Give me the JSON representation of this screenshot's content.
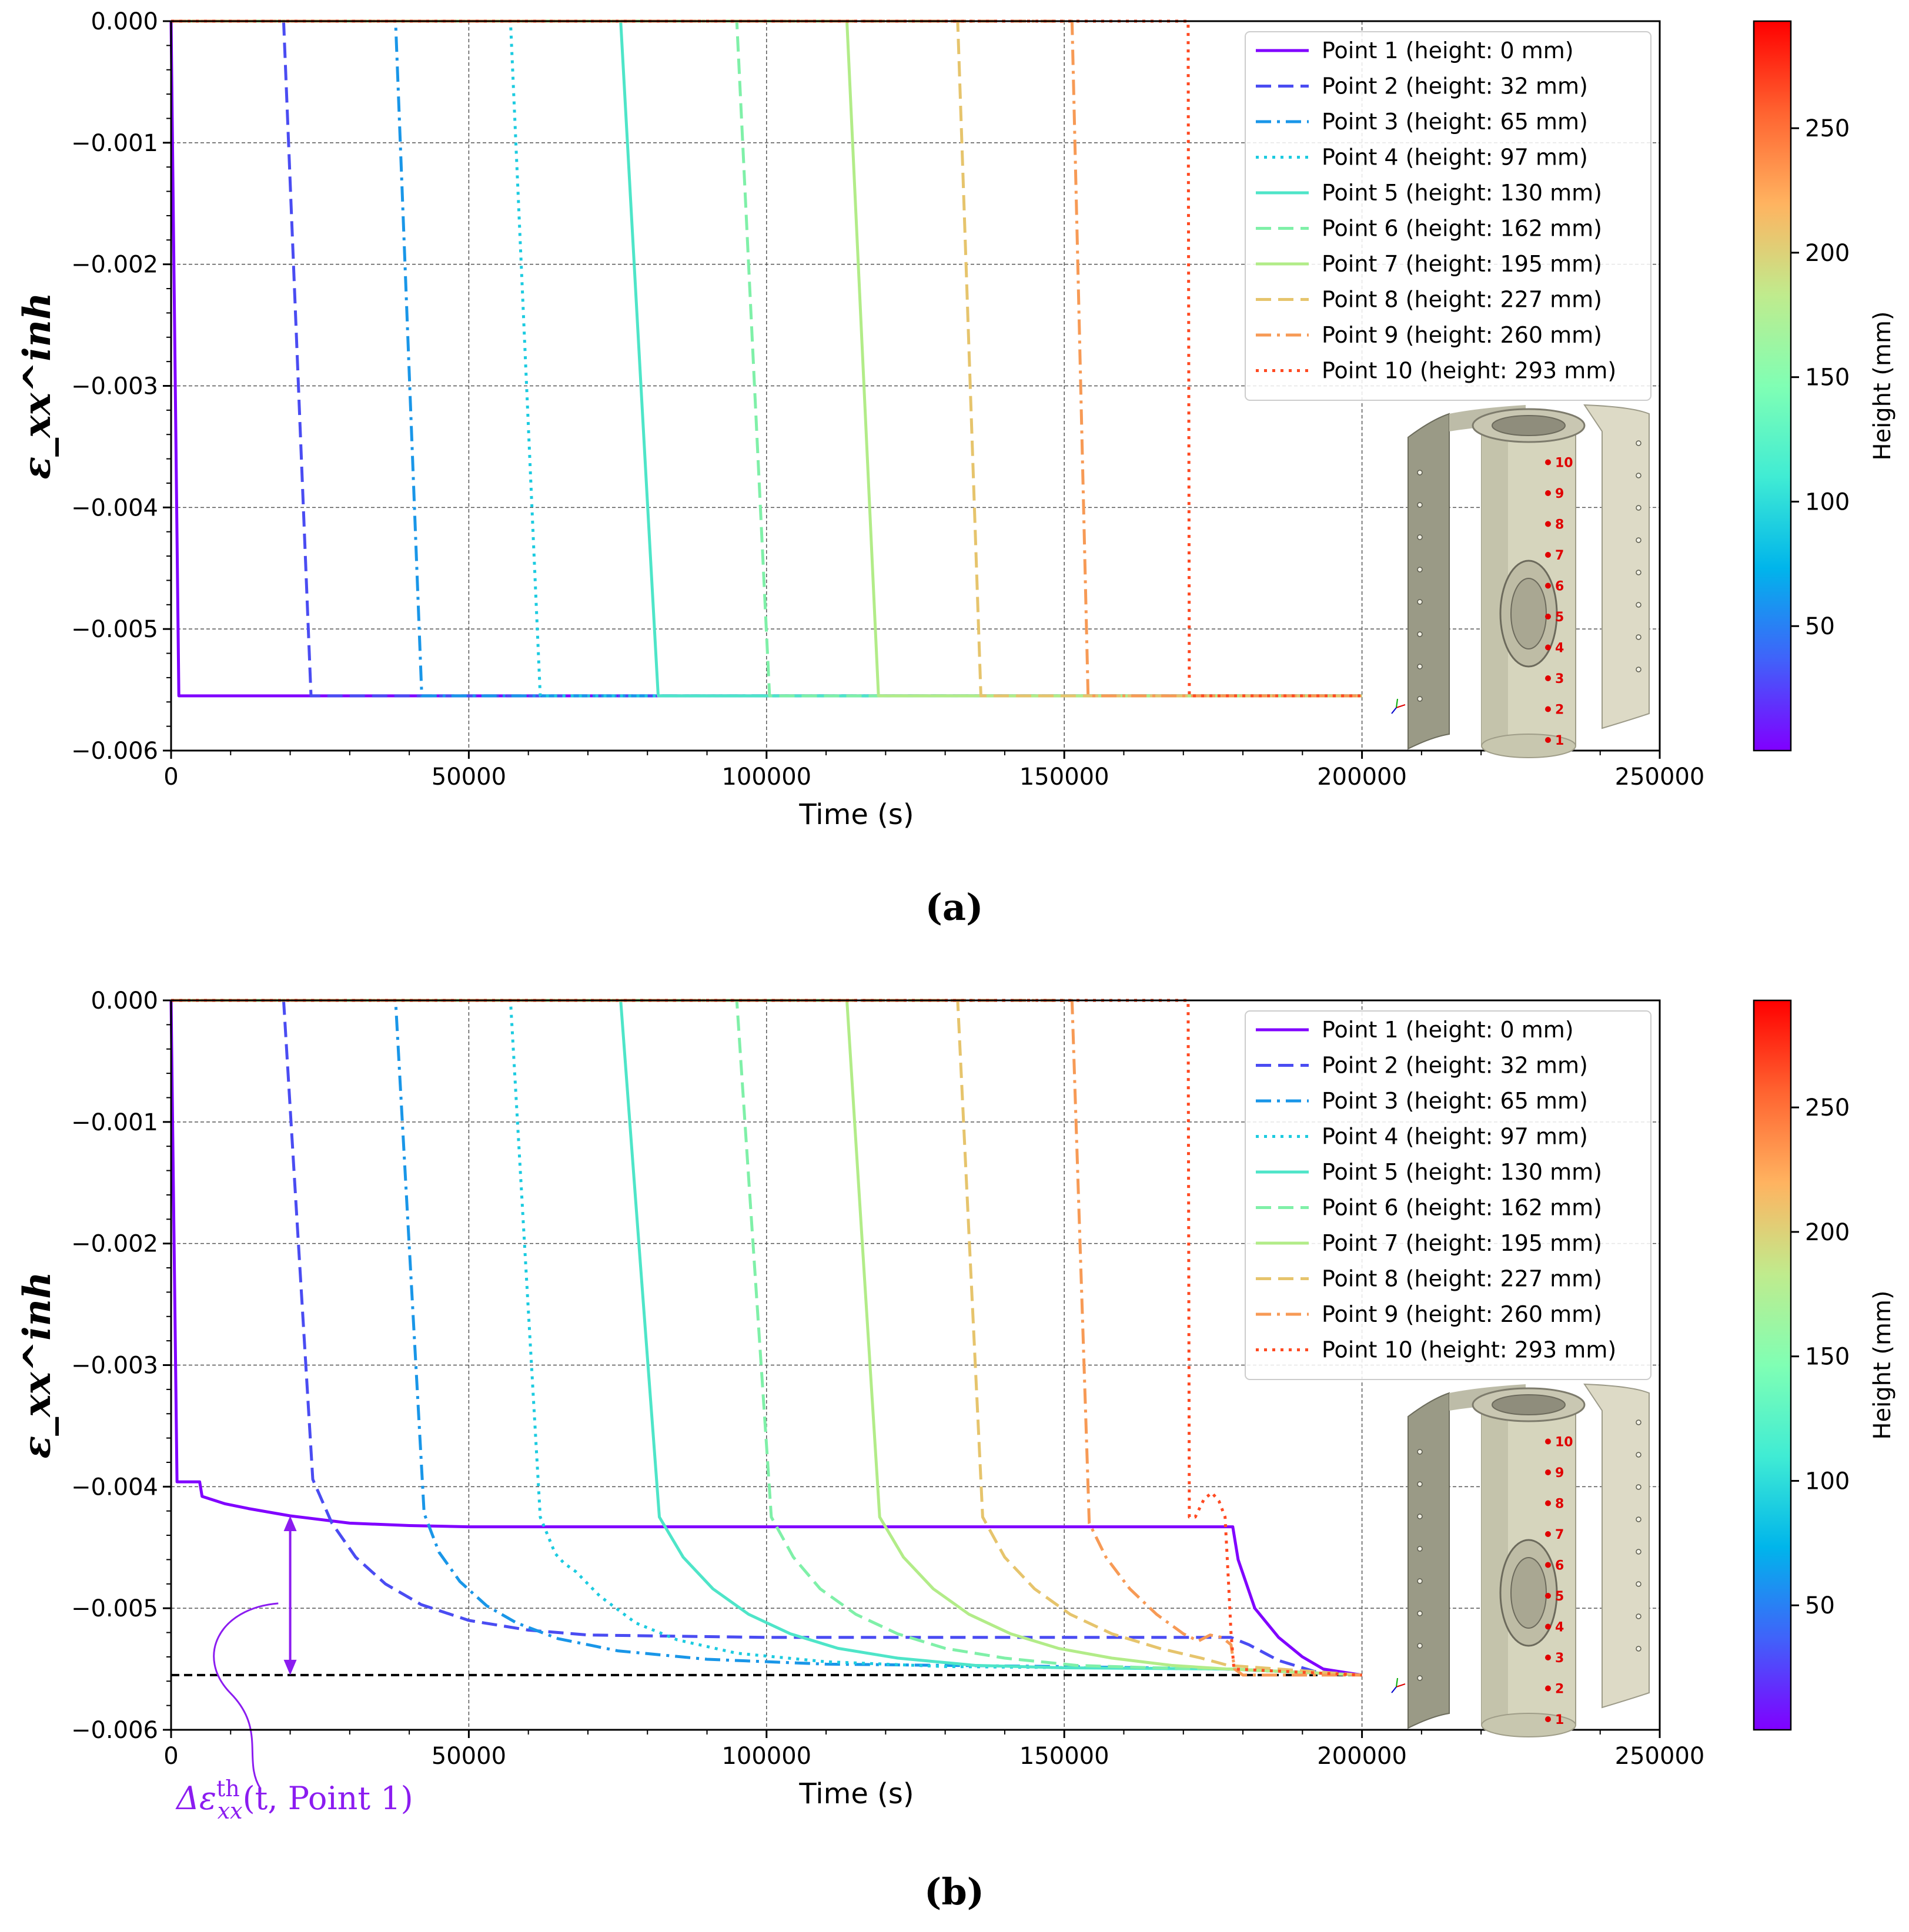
{
  "figure": {
    "panels": [
      {
        "id": "a",
        "caption": "(a)"
      },
      {
        "id": "b",
        "caption": "(b)"
      }
    ]
  },
  "colorbar": {
    "label": "Height (mm)",
    "ticks": [
      50,
      100,
      150,
      200,
      250
    ],
    "range": [
      0,
      293
    ],
    "gradient": [
      "#8000ff",
      "#4062fa",
      "#00b5eb",
      "#40ecd4",
      "#80ffb4",
      "#c0eb8d",
      "#ffb360",
      "#ff6330",
      "#ff0000"
    ]
  },
  "annotation": {
    "text": "Δε",
    "sup": "th",
    "sub": "xx",
    "args": "(t, Point 1)",
    "color": "#8b1cf0"
  },
  "inset_labels": [
    "1",
    "2",
    "3",
    "4",
    "5",
    "6",
    "7",
    "8",
    "9",
    "10"
  ],
  "chart_data": [
    {
      "type": "line",
      "panel": "a",
      "title": "",
      "xlabel": "Time (s)",
      "ylabel": "ε_xx^inh",
      "xlim": [
        0,
        250000
      ],
      "ylim": [
        -0.006,
        0.0
      ],
      "xticks": [
        0,
        50000,
        100000,
        150000,
        200000,
        250000
      ],
      "xtick_labels": [
        "0",
        "50000",
        "100000",
        "150000",
        "200000",
        "250000"
      ],
      "yticks": [
        0.0,
        -0.001,
        -0.002,
        -0.003,
        -0.004,
        -0.005,
        -0.006
      ],
      "ytick_labels": [
        "0.000",
        "−0.001",
        "−0.002",
        "−0.003",
        "−0.004",
        "−0.005",
        "−0.006"
      ],
      "grid": true,
      "legend_position": "top-right",
      "series": [
        {
          "name": "Point 1 (height: 0 mm)",
          "color": "#8000ff",
          "dash": "solid",
          "x": [
            0,
            1300,
            200000
          ],
          "y": [
            0,
            -0.00555,
            -0.00555
          ]
        },
        {
          "name": "Point 2 (height: 32 mm)",
          "color": "#4a4cf2",
          "dash": "dashed",
          "x": [
            0,
            18900,
            23500,
            200000
          ],
          "y": [
            0,
            0,
            -0.00555,
            -0.00555
          ]
        },
        {
          "name": "Point 3 (height: 65 mm)",
          "color": "#1996e8",
          "dash": "dashdot",
          "x": [
            0,
            37700,
            42100,
            200000
          ],
          "y": [
            0,
            0,
            -0.00555,
            -0.00555
          ]
        },
        {
          "name": "Point 4 (height: 97 mm)",
          "color": "#1ccbe0",
          "dash": "dotted",
          "x": [
            0,
            57000,
            62000,
            200000
          ],
          "y": [
            0,
            0,
            -0.00555,
            -0.00555
          ]
        },
        {
          "name": "Point 5 (height: 130 mm)",
          "color": "#4ee5c8",
          "dash": "solid",
          "x": [
            0,
            75500,
            81800,
            200000
          ],
          "y": [
            0,
            0,
            -0.00555,
            -0.00555
          ]
        },
        {
          "name": "Point 6 (height: 162 mm)",
          "color": "#7ff0a8",
          "dash": "dashed",
          "x": [
            0,
            95000,
            100500,
            200000
          ],
          "y": [
            0,
            0,
            -0.00555,
            -0.00555
          ]
        },
        {
          "name": "Point 7 (height: 195 mm)",
          "color": "#b2ec88",
          "dash": "solid",
          "x": [
            0,
            113500,
            118800,
            200000
          ],
          "y": [
            0,
            0,
            -0.00555,
            -0.00555
          ]
        },
        {
          "name": "Point 8 (height: 227 mm)",
          "color": "#e6c46c",
          "dash": "dashed",
          "x": [
            0,
            132100,
            136000,
            200000
          ],
          "y": [
            0,
            0,
            -0.00555,
            -0.00555
          ]
        },
        {
          "name": "Point 9 (height: 260 mm)",
          "color": "#f79a55",
          "dash": "dashdot",
          "x": [
            0,
            151300,
            154000,
            200000
          ],
          "y": [
            0,
            0,
            -0.00555,
            -0.00555
          ]
        },
        {
          "name": "Point 10 (height: 293 mm)",
          "color": "#ff4a22",
          "dash": "dotted",
          "x": [
            0,
            170800,
            171000,
            200000
          ],
          "y": [
            0,
            0,
            -0.00555,
            -0.00555
          ]
        }
      ]
    },
    {
      "type": "line",
      "panel": "b",
      "title": "",
      "xlabel": "Time (s)",
      "ylabel": "ε_xx^inh",
      "xlim": [
        0,
        250000
      ],
      "ylim": [
        -0.006,
        0.0
      ],
      "xticks": [
        0,
        50000,
        100000,
        150000,
        200000,
        250000
      ],
      "xtick_labels": [
        "0",
        "50000",
        "100000",
        "150000",
        "200000",
        "250000"
      ],
      "yticks": [
        0.0,
        -0.001,
        -0.002,
        -0.003,
        -0.004,
        -0.005,
        -0.006
      ],
      "ytick_labels": [
        "0.000",
        "−0.001",
        "−0.002",
        "−0.003",
        "−0.004",
        "−0.005",
        "−0.006"
      ],
      "grid": true,
      "legend_position": "top-right",
      "reference_line": {
        "y": -0.00555,
        "color": "#000000",
        "dash": "dashed"
      },
      "series": [
        {
          "name": "Point 1 (height: 0 mm)",
          "color": "#8000ff",
          "dash": "solid",
          "x": [
            0,
            1000,
            4800,
            5200,
            9000,
            13000,
            20000,
            30000,
            40000,
            50000,
            100000,
            150000,
            178300,
            179200,
            182000,
            186000,
            190000,
            193500,
            200000
          ],
          "y": [
            0,
            -0.00396,
            -0.00396,
            -0.00408,
            -0.00414,
            -0.00418,
            -0.00424,
            -0.0043,
            -0.00432,
            -0.00433,
            -0.00433,
            -0.00433,
            -0.00433,
            -0.0046,
            -0.005,
            -0.00524,
            -0.0054,
            -0.0055,
            -0.00555
          ]
        },
        {
          "name": "Point 2 (height: 32 mm)",
          "color": "#4a4cf2",
          "dash": "dashed",
          "x": [
            0,
            18900,
            23800,
            27000,
            31000,
            36000,
            42000,
            50000,
            60000,
            70000,
            100000,
            150000,
            178000,
            181000,
            186000,
            192000,
            200000
          ],
          "y": [
            0,
            0,
            -0.00394,
            -0.0043,
            -0.00458,
            -0.0048,
            -0.00497,
            -0.0051,
            -0.00518,
            -0.00522,
            -0.00524,
            -0.00524,
            -0.00524,
            -0.0053,
            -0.00543,
            -0.00552,
            -0.00555
          ]
        },
        {
          "name": "Point 3 (height: 65 mm)",
          "color": "#1996e8",
          "dash": "dashdot",
          "x": [
            0,
            37700,
            42500,
            45000,
            48500,
            53000,
            58000,
            65000,
            75000,
            90000,
            110000,
            150000,
            177000,
            200000
          ],
          "y": [
            0,
            0,
            -0.00422,
            -0.00454,
            -0.00478,
            -0.00498,
            -0.00512,
            -0.00525,
            -0.00535,
            -0.00542,
            -0.00546,
            -0.00548,
            -0.0055,
            -0.00555
          ]
        },
        {
          "name": "Point 4 (height: 97 mm)",
          "color": "#1ccbe0",
          "dash": "dotted",
          "x": [
            0,
            57000,
            62000,
            64500,
            66000,
            68000,
            72000,
            78000,
            85000,
            95000,
            110000,
            130000,
            178000,
            200000
          ],
          "y": [
            0,
            0,
            -0.00425,
            -0.00455,
            -0.00463,
            -0.0047,
            -0.0049,
            -0.00512,
            -0.00526,
            -0.00537,
            -0.00544,
            -0.00548,
            -0.0055,
            -0.00555
          ]
        },
        {
          "name": "Point 5 (height: 130 mm)",
          "color": "#4ee5c8",
          "dash": "solid",
          "x": [
            0,
            75500,
            82000,
            86000,
            91000,
            97000,
            104000,
            112000,
            122000,
            135000,
            150000,
            178000,
            200000
          ],
          "y": [
            0,
            0,
            -0.00425,
            -0.00458,
            -0.00484,
            -0.00505,
            -0.00521,
            -0.00533,
            -0.00541,
            -0.00547,
            -0.00549,
            -0.0055,
            -0.00555
          ]
        },
        {
          "name": "Point 6 (height: 162 mm)",
          "color": "#7ff0a8",
          "dash": "dashed",
          "x": [
            0,
            95000,
            100800,
            104500,
            109000,
            115000,
            122000,
            130000,
            140000,
            152000,
            165000,
            178000,
            200000
          ],
          "y": [
            0,
            0,
            -0.00425,
            -0.00458,
            -0.00484,
            -0.00505,
            -0.00521,
            -0.00533,
            -0.00541,
            -0.00547,
            -0.00549,
            -0.0055,
            -0.00555
          ]
        },
        {
          "name": "Point 7 (height: 195 mm)",
          "color": "#b2ec88",
          "dash": "solid",
          "x": [
            0,
            113500,
            119000,
            123000,
            128000,
            134000,
            141000,
            149000,
            158000,
            168000,
            177500,
            200000
          ],
          "y": [
            0,
            0,
            -0.00425,
            -0.00458,
            -0.00484,
            -0.00505,
            -0.00521,
            -0.00533,
            -0.00541,
            -0.00547,
            -0.0055,
            -0.00555
          ]
        },
        {
          "name": "Point 8 (height: 227 mm)",
          "color": "#e6c46c",
          "dash": "dashed",
          "x": [
            0,
            132100,
            136300,
            140000,
            145000,
            151000,
            158000,
            166000,
            173000,
            177500,
            200000
          ],
          "y": [
            0,
            0,
            -0.00425,
            -0.00458,
            -0.00484,
            -0.00505,
            -0.00521,
            -0.00533,
            -0.00541,
            -0.00547,
            -0.00555
          ]
        },
        {
          "name": "Point 9 (height: 260 mm)",
          "color": "#f79a55",
          "dash": "dashdot",
          "x": [
            0,
            151300,
            154200,
            157000,
            161000,
            165500,
            170000,
            172500,
            174500,
            176500,
            178000,
            178600,
            180000,
            200000
          ],
          "y": [
            0,
            0,
            -0.0043,
            -0.00458,
            -0.00484,
            -0.00505,
            -0.00521,
            -0.00527,
            -0.00522,
            -0.00524,
            -0.0053,
            -0.0055,
            -0.00555,
            -0.00555
          ]
        },
        {
          "name": "Point 10 (height: 293 mm)",
          "color": "#ff4a22",
          "dash": "dotted",
          "x": [
            0,
            170800,
            171000,
            172000,
            173500,
            174800,
            176000,
            177000,
            177600,
            178000,
            178500,
            200000
          ],
          "y": [
            0,
            0,
            -0.00425,
            -0.00425,
            -0.0041,
            -0.00405,
            -0.00412,
            -0.00425,
            -0.0048,
            -0.0052,
            -0.0055,
            -0.00555
          ]
        }
      ]
    }
  ]
}
